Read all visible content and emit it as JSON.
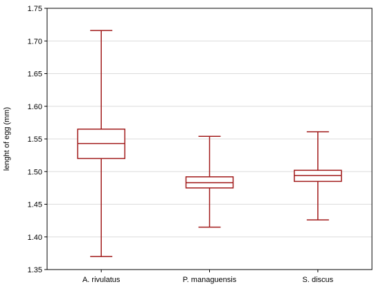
{
  "chart_data": {
    "type": "boxplot",
    "title": "",
    "xlabel": "",
    "ylabel": "lenght of egg (mm)",
    "ylim": [
      1.35,
      1.75
    ],
    "yticks": [
      "1.35",
      "1.40",
      "1.45",
      "1.50",
      "1.55",
      "1.60",
      "1.65",
      "1.70",
      "1.75"
    ],
    "grid": "horizontal",
    "categories": [
      "A. rivulatus",
      "P. managuensis",
      "S. discus"
    ],
    "boxes": [
      {
        "category": "A. rivulatus",
        "min": 1.37,
        "q1": 1.52,
        "median": 1.543,
        "q3": 1.565,
        "max": 1.716
      },
      {
        "category": "P. managuensis",
        "min": 1.415,
        "q1": 1.475,
        "median": 1.483,
        "q3": 1.492,
        "max": 1.554
      },
      {
        "category": "S. discus",
        "min": 1.426,
        "q1": 1.485,
        "median": 1.494,
        "q3": 1.502,
        "max": 1.561
      }
    ],
    "color": "#a01818"
  }
}
